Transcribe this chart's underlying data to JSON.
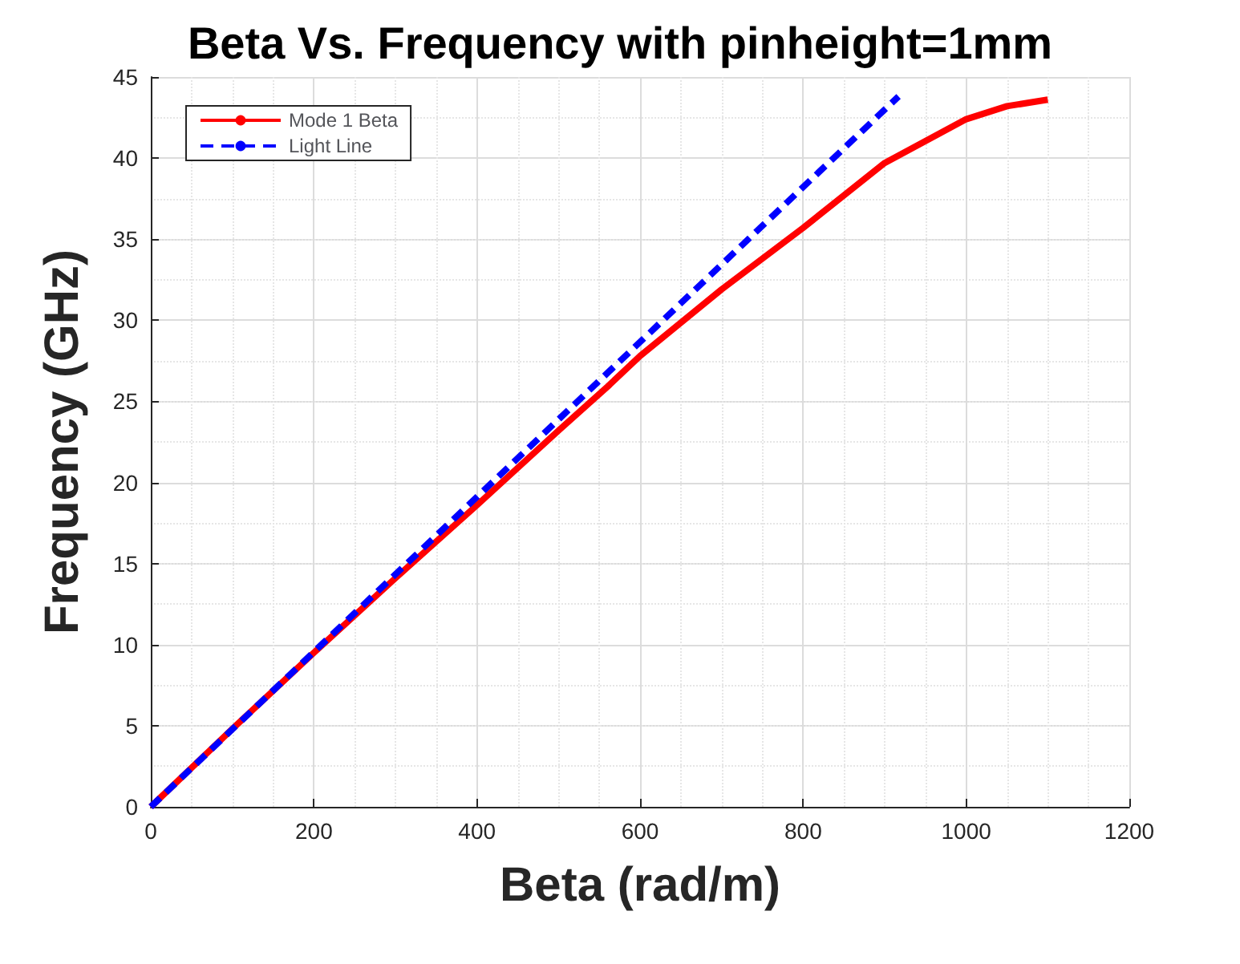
{
  "chart_data": {
    "type": "line",
    "title": "Beta Vs. Frequency with pinheight=1mm",
    "xlabel": "Beta (rad/m)",
    "ylabel": "Frequency (GHz)",
    "series": [
      {
        "name": "Mode 1 Beta",
        "color": "#ff0000",
        "line_style": "solid",
        "x": [
          0,
          100,
          200,
          300,
          400,
          500,
          560,
          600,
          700,
          800,
          900,
          1000,
          1050,
          1100
        ],
        "values": [
          0,
          4.8,
          9.5,
          14.1,
          18.6,
          23.2,
          25.9,
          27.8,
          31.9,
          35.7,
          39.7,
          42.4,
          43.2,
          43.6
        ]
      },
      {
        "name": "Light Line",
        "color": "#0000ff",
        "line_style": "dashed",
        "x": [
          0,
          917
        ],
        "values": [
          0,
          43.8
        ]
      }
    ],
    "xlim": [
      0,
      1200
    ],
    "xticks": [
      0,
      200,
      400,
      600,
      800,
      1000,
      1200
    ],
    "ylim": [
      0,
      45
    ],
    "yticks": [
      0,
      5,
      10,
      15,
      20,
      25,
      30,
      35,
      40,
      45
    ],
    "grid": true,
    "legend": "top left",
    "marker": "none"
  }
}
